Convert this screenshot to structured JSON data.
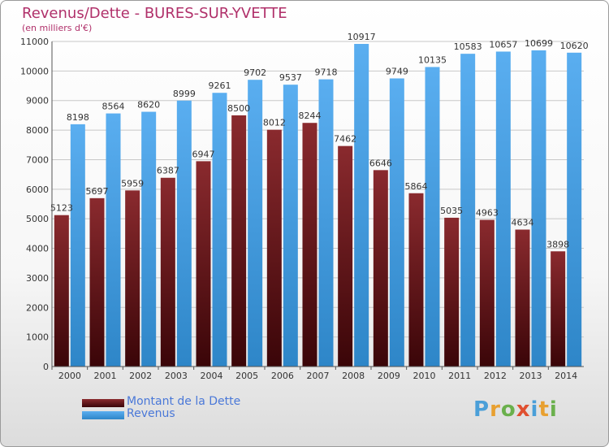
{
  "chart_data": {
    "type": "bar",
    "title": "Revenus/Dette - BURES-SUR-YVETTE",
    "subtitle": "(en milliers d'€)",
    "categories": [
      "2000",
      "2001",
      "2002",
      "2003",
      "2004",
      "2005",
      "2006",
      "2007",
      "2008",
      "2009",
      "2010",
      "2011",
      "2012",
      "2013",
      "2014"
    ],
    "series": [
      {
        "name": "Montant de la Dette",
        "color": "#7a1f23",
        "labels": [
          "5123",
          "5697",
          "5959",
          "6387",
          "6947",
          "8500",
          "8012",
          "8244",
          "7462",
          "6646",
          "5864",
          "5035",
          "4963",
          "4634",
          "3898"
        ],
        "values": [
          5123,
          5697,
          5959,
          6387,
          6947,
          8500,
          8012,
          8244,
          7462,
          6646,
          5864,
          5035,
          4963,
          4634,
          3898
        ]
      },
      {
        "name": "Revenus",
        "color": "#4aa0e6",
        "labels": [
          "8198",
          "8564",
          "8620",
          "8999",
          "9261",
          "9702",
          "9537",
          "9718",
          "10917",
          "9749",
          "10135",
          "10583",
          "10657",
          "10699",
          "10620"
        ],
        "values": [
          8198,
          8564,
          8620,
          8999,
          9261,
          9702,
          9537,
          9718,
          10917,
          9749,
          10135,
          10583,
          10657,
          10699,
          10620
        ]
      }
    ],
    "ylim": [
      0,
      11000
    ],
    "yticks": [
      0,
      1000,
      2000,
      3000,
      4000,
      5000,
      6000,
      7000,
      8000,
      9000,
      10000,
      11000
    ],
    "grid": true,
    "legend": "bottom-left"
  },
  "logo_letters": [
    "P",
    "r",
    "o",
    "x",
    "i",
    "t",
    "i"
  ],
  "logo_colors": [
    "#4a9fd8",
    "#e8a030",
    "#6ab04c",
    "#e05030",
    "#4a9fd8",
    "#e8a030",
    "#6ab04c"
  ]
}
